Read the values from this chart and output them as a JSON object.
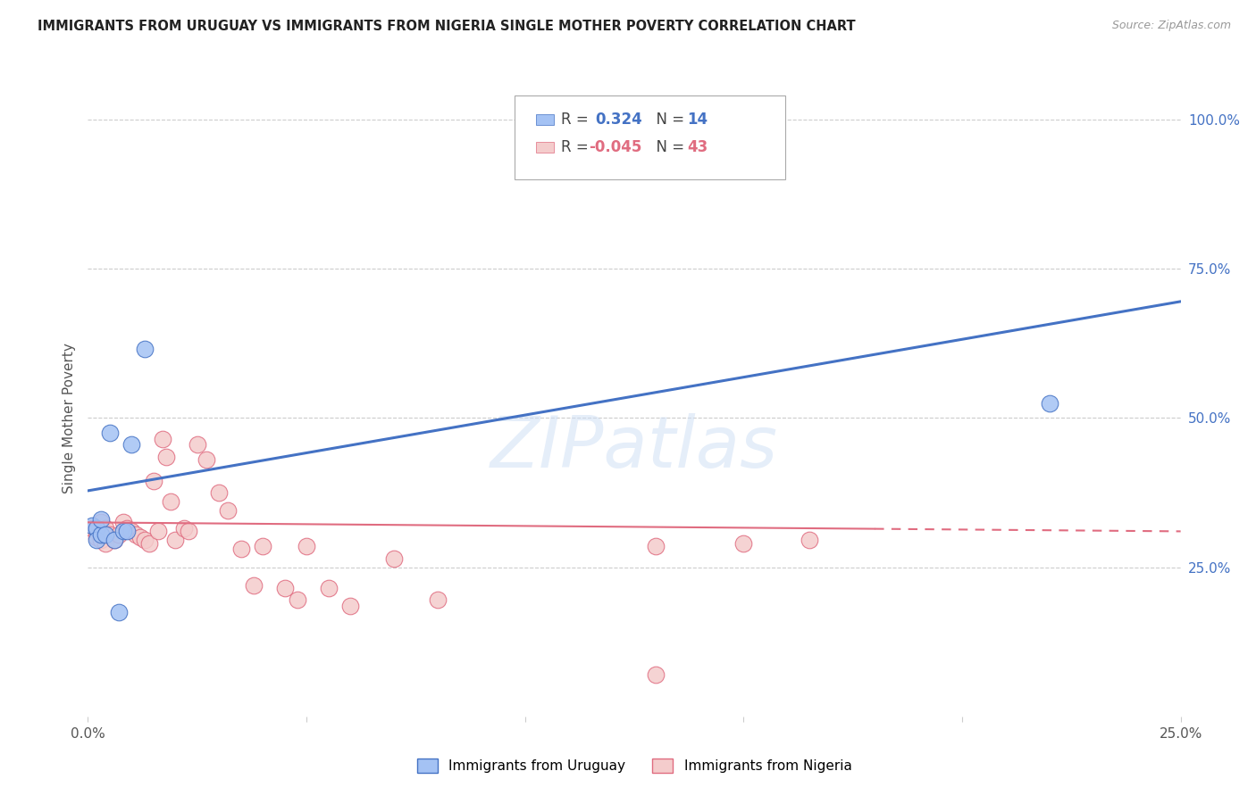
{
  "title": "IMMIGRANTS FROM URUGUAY VS IMMIGRANTS FROM NIGERIA SINGLE MOTHER POVERTY CORRELATION CHART",
  "source": "Source: ZipAtlas.com",
  "ylabel": "Single Mother Poverty",
  "ylabel_right_ticks": [
    "100.0%",
    "75.0%",
    "50.0%",
    "25.0%"
  ],
  "ylabel_right_vals": [
    1.0,
    0.75,
    0.5,
    0.25
  ],
  "legend_r_uruguay": "0.324",
  "legend_n_uruguay": "14",
  "legend_r_nigeria": "-0.045",
  "legend_n_nigeria": "43",
  "legend_label_uruguay": "Immigrants from Uruguay",
  "legend_label_nigeria": "Immigrants from Nigeria",
  "watermark": "ZIPatlas",
  "blue_fill": "#a4c2f4",
  "pink_fill": "#f4cccc",
  "blue_edge": "#4472c4",
  "pink_edge": "#e06c80",
  "blue_line": "#4472c4",
  "pink_line": "#e06c80",
  "xlim": [
    0,
    0.25
  ],
  "ylim": [
    0,
    1.0
  ],
  "uruguay_x": [
    0.001,
    0.002,
    0.002,
    0.003,
    0.003,
    0.004,
    0.005,
    0.006,
    0.007,
    0.008,
    0.009,
    0.01,
    0.013,
    0.22
  ],
  "uruguay_y": [
    0.32,
    0.315,
    0.295,
    0.305,
    0.33,
    0.305,
    0.475,
    0.295,
    0.175,
    0.31,
    0.31,
    0.455,
    0.615,
    0.525
  ],
  "nigeria_x": [
    0.001,
    0.002,
    0.002,
    0.003,
    0.003,
    0.004,
    0.004,
    0.005,
    0.006,
    0.007,
    0.008,
    0.009,
    0.01,
    0.011,
    0.012,
    0.013,
    0.014,
    0.015,
    0.016,
    0.017,
    0.018,
    0.019,
    0.02,
    0.022,
    0.023,
    0.025,
    0.027,
    0.03,
    0.032,
    0.035,
    0.038,
    0.04,
    0.045,
    0.048,
    0.05,
    0.055,
    0.06,
    0.07,
    0.08,
    0.13,
    0.15,
    0.165,
    0.13
  ],
  "nigeria_y": [
    0.315,
    0.31,
    0.3,
    0.325,
    0.295,
    0.29,
    0.315,
    0.305,
    0.295,
    0.305,
    0.325,
    0.315,
    0.31,
    0.305,
    0.3,
    0.295,
    0.29,
    0.395,
    0.31,
    0.465,
    0.435,
    0.36,
    0.295,
    0.315,
    0.31,
    0.455,
    0.43,
    0.375,
    0.345,
    0.28,
    0.22,
    0.285,
    0.215,
    0.195,
    0.285,
    0.215,
    0.185,
    0.265,
    0.195,
    0.285,
    0.29,
    0.295,
    0.07
  ],
  "blue_line_x0": 0.0,
  "blue_line_y0": 0.378,
  "blue_line_x1": 0.25,
  "blue_line_y1": 0.695,
  "pink_line_x0": 0.0,
  "pink_line_y0": 0.325,
  "pink_line_x1": 0.25,
  "pink_line_y1": 0.31
}
